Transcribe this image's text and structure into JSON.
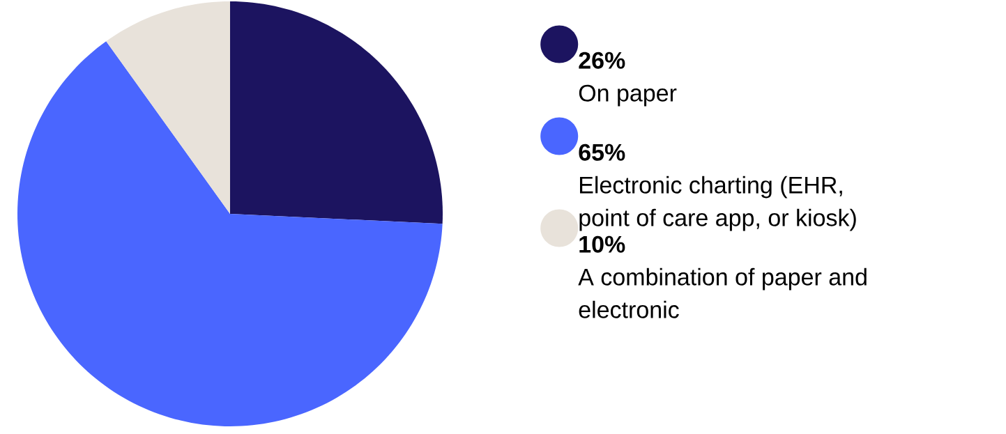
{
  "chart_data": {
    "type": "pie",
    "categories": [
      "On paper",
      "Electronic charting (EHR, point of care app, or kiosk)",
      "A combination of paper and electronic"
    ],
    "values": [
      26,
      65,
      10
    ],
    "colors": [
      "#1c1460",
      "#4a66ff",
      "#e8e2da"
    ],
    "value_labels": [
      "26%",
      "65%",
      "10%"
    ],
    "legend": "right"
  }
}
